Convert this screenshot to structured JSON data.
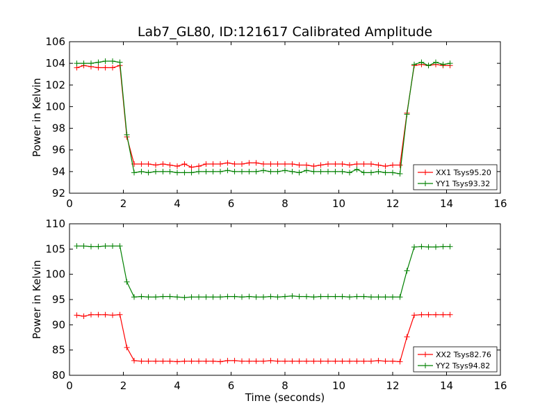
{
  "figure": {
    "title": "Lab7_GL80, ID:121617 Calibrated Amplitude"
  },
  "chart_data": [
    {
      "type": "line",
      "title": "Lab7_GL80, ID:121617 Calibrated Amplitude",
      "xlabel": "",
      "ylabel": "Power in Kelvin",
      "xlim": [
        0,
        16
      ],
      "ylim": [
        92,
        106
      ],
      "xticks": [
        0,
        2,
        4,
        6,
        8,
        10,
        12,
        14,
        16
      ],
      "yticks": [
        92,
        94,
        96,
        98,
        100,
        102,
        104,
        106
      ],
      "grid": false,
      "legend_position": "bottom-right",
      "x": [
        0.27,
        0.53,
        0.8,
        1.07,
        1.33,
        1.6,
        1.87,
        2.13,
        2.4,
        2.67,
        2.93,
        3.2,
        3.47,
        3.73,
        4.0,
        4.27,
        4.53,
        4.8,
        5.07,
        5.33,
        5.6,
        5.87,
        6.13,
        6.4,
        6.67,
        6.93,
        7.2,
        7.47,
        7.73,
        8.0,
        8.27,
        8.53,
        8.8,
        9.07,
        9.33,
        9.6,
        9.87,
        10.13,
        10.4,
        10.67,
        10.93,
        11.2,
        11.47,
        11.73,
        12.0,
        12.27,
        12.53,
        12.8,
        13.07,
        13.33,
        13.6,
        13.87,
        14.13
      ],
      "series": [
        {
          "name": "XX1 Tsys95.20",
          "color": "#ff0000",
          "values": [
            103.6,
            103.8,
            103.7,
            103.6,
            103.6,
            103.6,
            103.8,
            97.2,
            94.7,
            94.7,
            94.7,
            94.6,
            94.7,
            94.6,
            94.5,
            94.7,
            94.4,
            94.5,
            94.7,
            94.7,
            94.7,
            94.8,
            94.7,
            94.7,
            94.8,
            94.8,
            94.7,
            94.7,
            94.7,
            94.7,
            94.7,
            94.6,
            94.6,
            94.5,
            94.6,
            94.7,
            94.7,
            94.7,
            94.6,
            94.7,
            94.7,
            94.7,
            94.6,
            94.5,
            94.6,
            94.6,
            99.4,
            103.8,
            103.9,
            103.8,
            103.9,
            103.8,
            103.8
          ]
        },
        {
          "name": "YY1 Tsys93.32",
          "color": "#008000",
          "values": [
            104.0,
            104.0,
            104.0,
            104.1,
            104.2,
            104.2,
            104.1,
            97.4,
            93.9,
            94.0,
            93.9,
            94.0,
            94.0,
            94.0,
            93.9,
            93.9,
            93.9,
            94.0,
            94.0,
            94.0,
            94.0,
            94.1,
            94.0,
            94.0,
            94.0,
            94.0,
            94.1,
            94.0,
            94.0,
            94.1,
            94.0,
            93.9,
            94.1,
            94.0,
            94.0,
            94.0,
            94.0,
            94.0,
            93.9,
            94.2,
            93.9,
            93.9,
            94.0,
            93.9,
            93.9,
            93.8,
            99.3,
            103.9,
            104.1,
            103.8,
            104.1,
            103.9,
            104.0
          ]
        }
      ]
    },
    {
      "type": "line",
      "title": "",
      "xlabel": "Time (seconds)",
      "ylabel": "Power in Kelvin",
      "xlim": [
        0,
        16
      ],
      "ylim": [
        80,
        110
      ],
      "xticks": [
        0,
        2,
        4,
        6,
        8,
        10,
        12,
        14,
        16
      ],
      "yticks": [
        80,
        85,
        90,
        95,
        100,
        105,
        110
      ],
      "grid": false,
      "legend_position": "bottom-right",
      "x": [
        0.27,
        0.53,
        0.8,
        1.07,
        1.33,
        1.6,
        1.87,
        2.13,
        2.4,
        2.67,
        2.93,
        3.2,
        3.47,
        3.73,
        4.0,
        4.27,
        4.53,
        4.8,
        5.07,
        5.33,
        5.6,
        5.87,
        6.13,
        6.4,
        6.67,
        6.93,
        7.2,
        7.47,
        7.73,
        8.0,
        8.27,
        8.53,
        8.8,
        9.07,
        9.33,
        9.6,
        9.87,
        10.13,
        10.4,
        10.67,
        10.93,
        11.2,
        11.47,
        11.73,
        12.0,
        12.27,
        12.53,
        12.8,
        13.07,
        13.33,
        13.6,
        13.87,
        14.13
      ],
      "series": [
        {
          "name": "XX2 Tsys82.76",
          "color": "#ff0000",
          "values": [
            91.9,
            91.7,
            92.0,
            92.0,
            92.0,
            91.9,
            92.0,
            85.5,
            82.9,
            82.8,
            82.8,
            82.8,
            82.8,
            82.8,
            82.7,
            82.8,
            82.8,
            82.8,
            82.8,
            82.8,
            82.7,
            82.9,
            82.9,
            82.8,
            82.8,
            82.8,
            82.8,
            82.9,
            82.8,
            82.8,
            82.8,
            82.8,
            82.8,
            82.8,
            82.8,
            82.8,
            82.8,
            82.8,
            82.8,
            82.8,
            82.8,
            82.8,
            82.9,
            82.8,
            82.8,
            82.7,
            87.6,
            91.9,
            92.0,
            92.0,
            92.0,
            92.0,
            92.0
          ]
        },
        {
          "name": "YY2 Tsys94.82",
          "color": "#008000",
          "values": [
            105.6,
            105.6,
            105.5,
            105.5,
            105.6,
            105.6,
            105.6,
            98.5,
            95.5,
            95.6,
            95.5,
            95.5,
            95.6,
            95.6,
            95.5,
            95.4,
            95.5,
            95.5,
            95.5,
            95.5,
            95.5,
            95.6,
            95.6,
            95.5,
            95.6,
            95.5,
            95.5,
            95.6,
            95.5,
            95.6,
            95.7,
            95.6,
            95.6,
            95.5,
            95.6,
            95.6,
            95.6,
            95.6,
            95.5,
            95.6,
            95.6,
            95.5,
            95.5,
            95.5,
            95.5,
            95.5,
            100.7,
            105.4,
            105.5,
            105.4,
            105.4,
            105.5,
            105.5
          ]
        }
      ]
    }
  ]
}
